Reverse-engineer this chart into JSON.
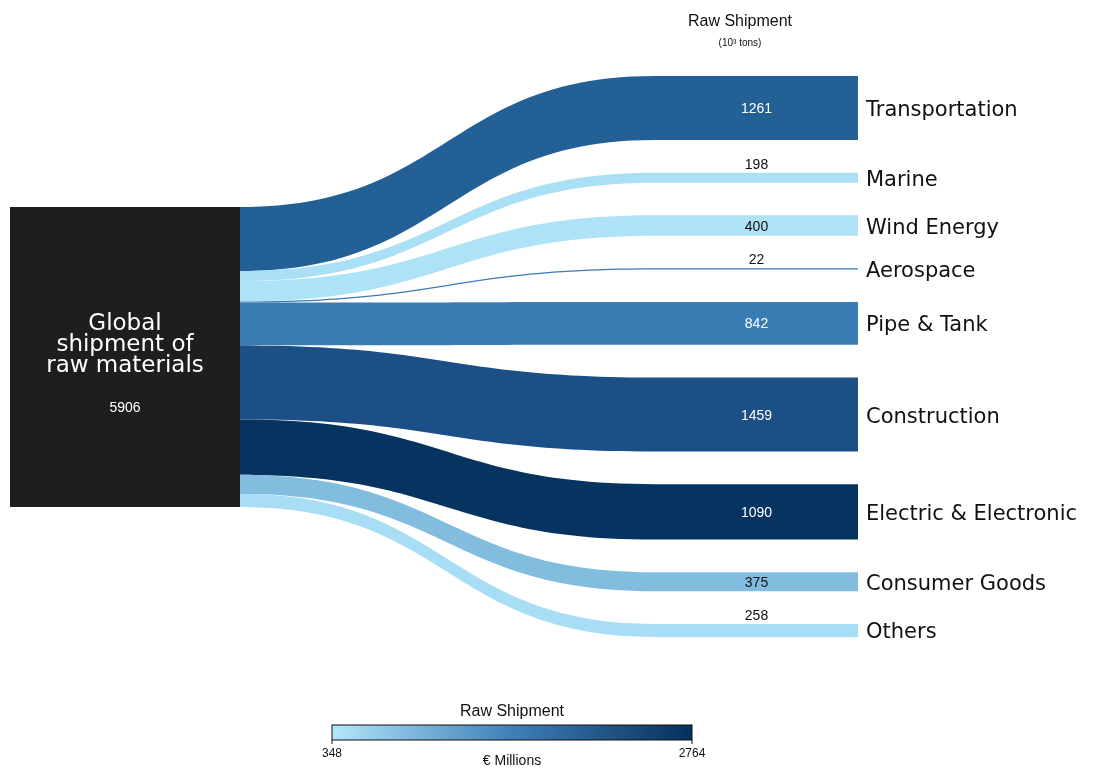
{
  "chart_data": {
    "type": "other",
    "title": "Raw Shipment",
    "subtitle": "(10³ tons)",
    "categories": [
      "Transportation",
      "Marine",
      "Wind Energy",
      "Aerospace",
      "Pipe & Tank",
      "Construction",
      "Electric & Electronic",
      "Consumer Goods",
      "Others"
    ],
    "values": [
      1261,
      198,
      400,
      22,
      842,
      1459,
      1090,
      375,
      258
    ],
    "colors": [
      "#236096",
      "#a9e0f6",
      "#aee2f7",
      "#3a7ab5",
      "#3a7db5",
      "#1c4f85",
      "#06335f",
      "#82bde0",
      "#a8def5"
    ],
    "annotations": [
      "Global shipment of raw materials",
      "5906",
      "€ Millions",
      "348",
      "2764"
    ],
    "data_labels": true,
    "clabel": "Raw Shipment"
  }
}
